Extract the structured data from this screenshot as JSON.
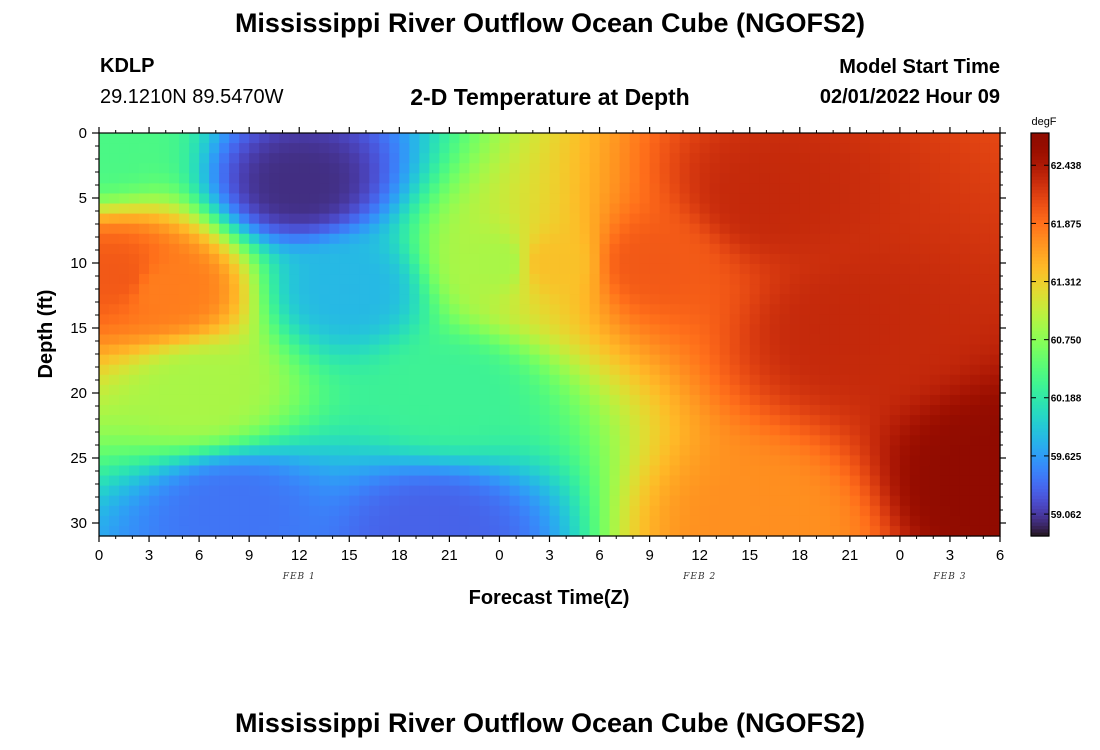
{
  "header": {
    "title": "Mississippi River Outflow Ocean Cube (NGOFS2)",
    "station_id": "KDLP",
    "station_coords": "29.1210N  89.5470W",
    "plot_title": "2-D Temperature at Depth",
    "start_label": "Model Start Time",
    "start_value": "02/01/2022 Hour 09"
  },
  "footer": {
    "title": "Mississippi River Outflow Ocean Cube (NGOFS2)"
  },
  "chart_data": {
    "type": "heatmap",
    "xlabel": "Forecast Time(Z)",
    "ylabel": "Depth (ft)",
    "x_unit": "hours since 00Z FEB 1",
    "xlim": [
      0,
      54
    ],
    "ylim": [
      31,
      0
    ],
    "x_ticks": [
      0,
      3,
      6,
      9,
      12,
      15,
      18,
      21,
      24,
      27,
      30,
      33,
      36,
      39,
      42,
      45,
      48,
      51,
      54
    ],
    "x_tick_labels": [
      "0",
      "3",
      "6",
      "9",
      "12",
      "15",
      "18",
      "21",
      "0",
      "3",
      "6",
      "9",
      "12",
      "15",
      "18",
      "21",
      "0",
      "3",
      "6"
    ],
    "y_ticks": [
      0,
      5,
      10,
      15,
      20,
      25,
      30
    ],
    "y_tick_labels": [
      "0",
      "5",
      "10",
      "15",
      "20",
      "25",
      "30"
    ],
    "day_labels": [
      {
        "x": 12,
        "text": "FEB 1"
      },
      {
        "x": 36,
        "text": "FEB 2"
      },
      {
        "x": 51,
        "text": "FEB 3"
      }
    ],
    "colorbar": {
      "unit": "degF",
      "vmin": 58.85,
      "vmax": 62.75,
      "ticks": [
        59.062,
        59.625,
        60.188,
        60.75,
        61.312,
        61.875,
        62.438
      ],
      "tick_labels": [
        "59.062",
        "59.625",
        "60.188",
        "60.750",
        "61.312",
        "61.875",
        "62.438"
      ],
      "colormap": "turbo"
    },
    "field_samples": [
      {
        "x": 0,
        "y": 1,
        "value": 60.4
      },
      {
        "x": 1,
        "y": 11,
        "value": 62.0
      },
      {
        "x": 4,
        "y": 12,
        "value": 61.8
      },
      {
        "x": 12,
        "y": 4,
        "value": 59.0
      },
      {
        "x": 15,
        "y": 12,
        "value": 59.8
      },
      {
        "x": 8,
        "y": 29,
        "value": 59.4
      },
      {
        "x": 6,
        "y": 20,
        "value": 60.9
      },
      {
        "x": 21,
        "y": 20,
        "value": 60.3
      },
      {
        "x": 24,
        "y": 10,
        "value": 60.9
      },
      {
        "x": 27,
        "y": 10,
        "value": 61.4
      },
      {
        "x": 33,
        "y": 10,
        "value": 62.0
      },
      {
        "x": 40,
        "y": 5,
        "value": 62.3
      },
      {
        "x": 45,
        "y": 15,
        "value": 62.3
      },
      {
        "x": 54,
        "y": 27,
        "value": 62.7
      },
      {
        "x": 40,
        "y": 30.5,
        "value": 61.7
      },
      {
        "x": 20,
        "y": 30.5,
        "value": 59.3
      }
    ]
  }
}
